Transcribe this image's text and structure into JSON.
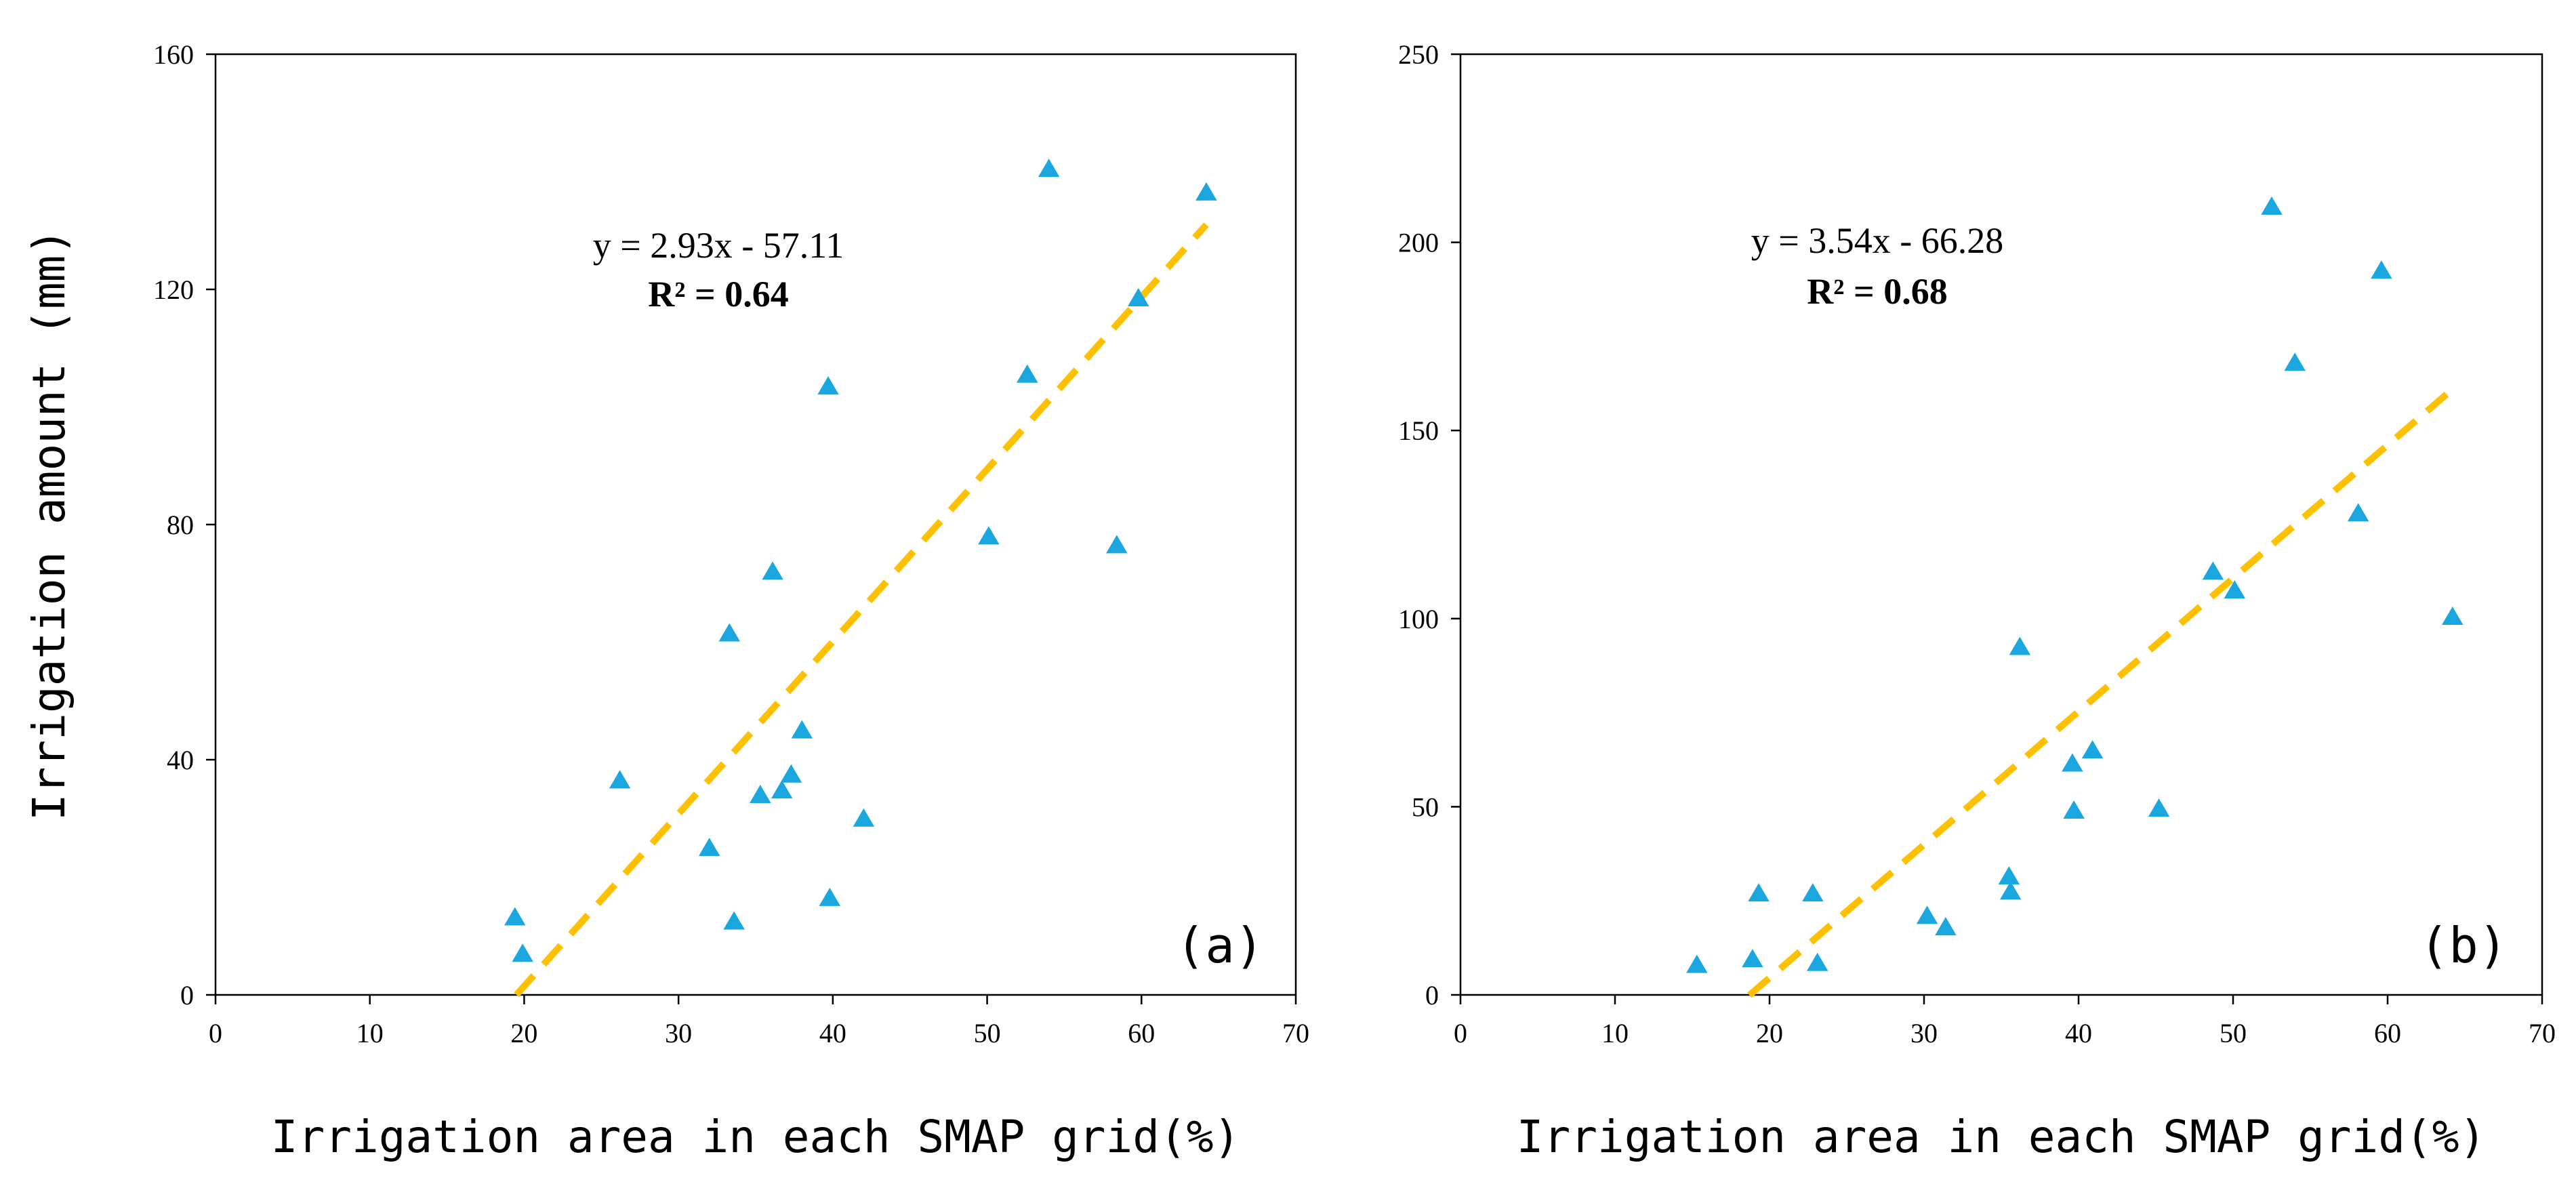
{
  "chart_data": [
    {
      "type": "scatter",
      "panel_label": "(a)",
      "xlabel": "Irrigation area in each SMAP grid(%)",
      "ylabel": "Irrigation amount (mm)",
      "xlim": [
        0,
        70
      ],
      "ylim": [
        0,
        160
      ],
      "xticks": [
        "0",
        "10",
        "20",
        "30",
        "40",
        "50",
        "60",
        "70"
      ],
      "yticks": [
        "0",
        "40",
        "80",
        "120",
        "160"
      ],
      "grid": false,
      "marker": "triangle",
      "marker_color": "#1aa7e0",
      "trendline_color": "#ffc000",
      "equation": "y = 2.93x - 57.11",
      "r_squared": "R² = 0.64",
      "trendline": {
        "slope": 2.93,
        "intercept": -57.11,
        "x_range": [
          19.5,
          64.2
        ]
      },
      "points": [
        {
          "x": 19.4,
          "y": 13.2
        },
        {
          "x": 19.9,
          "y": 7.0
        },
        {
          "x": 26.2,
          "y": 36.5
        },
        {
          "x": 32.0,
          "y": 25.0
        },
        {
          "x": 33.3,
          "y": 61.5
        },
        {
          "x": 33.6,
          "y": 12.5
        },
        {
          "x": 35.3,
          "y": 34.0
        },
        {
          "x": 36.1,
          "y": 72.0
        },
        {
          "x": 36.7,
          "y": 34.8
        },
        {
          "x": 37.3,
          "y": 37.5
        },
        {
          "x": 38.0,
          "y": 45.0
        },
        {
          "x": 39.7,
          "y": 103.5
        },
        {
          "x": 39.8,
          "y": 16.5
        },
        {
          "x": 42.0,
          "y": 30.0
        },
        {
          "x": 50.1,
          "y": 78.0
        },
        {
          "x": 52.6,
          "y": 105.5
        },
        {
          "x": 54.0,
          "y": 140.5
        },
        {
          "x": 58.4,
          "y": 76.5
        },
        {
          "x": 59.8,
          "y": 118.5
        },
        {
          "x": 64.2,
          "y": 136.5
        }
      ]
    },
    {
      "type": "scatter",
      "panel_label": "(b)",
      "xlabel": "Irrigation area in each SMAP grid(%)",
      "ylabel": "",
      "xlim": [
        0,
        70
      ],
      "ylim": [
        0,
        250
      ],
      "xticks": [
        "0",
        "10",
        "20",
        "30",
        "40",
        "50",
        "60",
        "70"
      ],
      "yticks": [
        "0",
        "50",
        "100",
        "150",
        "200",
        "250"
      ],
      "grid": false,
      "marker": "triangle",
      "marker_color": "#1aa7e0",
      "trendline_color": "#ffc000",
      "equation": "y = 3.54x - 66.28",
      "r_squared": "R² = 0.68",
      "trendline": {
        "slope": 3.54,
        "intercept": -66.28,
        "x_range": [
          18.7,
          64.2
        ]
      },
      "points": [
        {
          "x": 15.3,
          "y": 8.0
        },
        {
          "x": 18.9,
          "y": 9.5
        },
        {
          "x": 19.3,
          "y": 27.0
        },
        {
          "x": 22.8,
          "y": 27.0
        },
        {
          "x": 23.1,
          "y": 8.5
        },
        {
          "x": 30.2,
          "y": 21.0
        },
        {
          "x": 31.4,
          "y": 18.0
        },
        {
          "x": 35.5,
          "y": 31.5
        },
        {
          "x": 35.6,
          "y": 27.5
        },
        {
          "x": 36.2,
          "y": 92.5
        },
        {
          "x": 39.6,
          "y": 61.5
        },
        {
          "x": 39.7,
          "y": 49.0
        },
        {
          "x": 40.9,
          "y": 65.0
        },
        {
          "x": 45.2,
          "y": 49.5
        },
        {
          "x": 48.7,
          "y": 112.5
        },
        {
          "x": 50.1,
          "y": 107.5
        },
        {
          "x": 52.5,
          "y": 209.5
        },
        {
          "x": 54.0,
          "y": 168.0
        },
        {
          "x": 58.1,
          "y": 128.0
        },
        {
          "x": 59.6,
          "y": 192.5
        },
        {
          "x": 64.2,
          "y": 100.5
        }
      ]
    }
  ]
}
